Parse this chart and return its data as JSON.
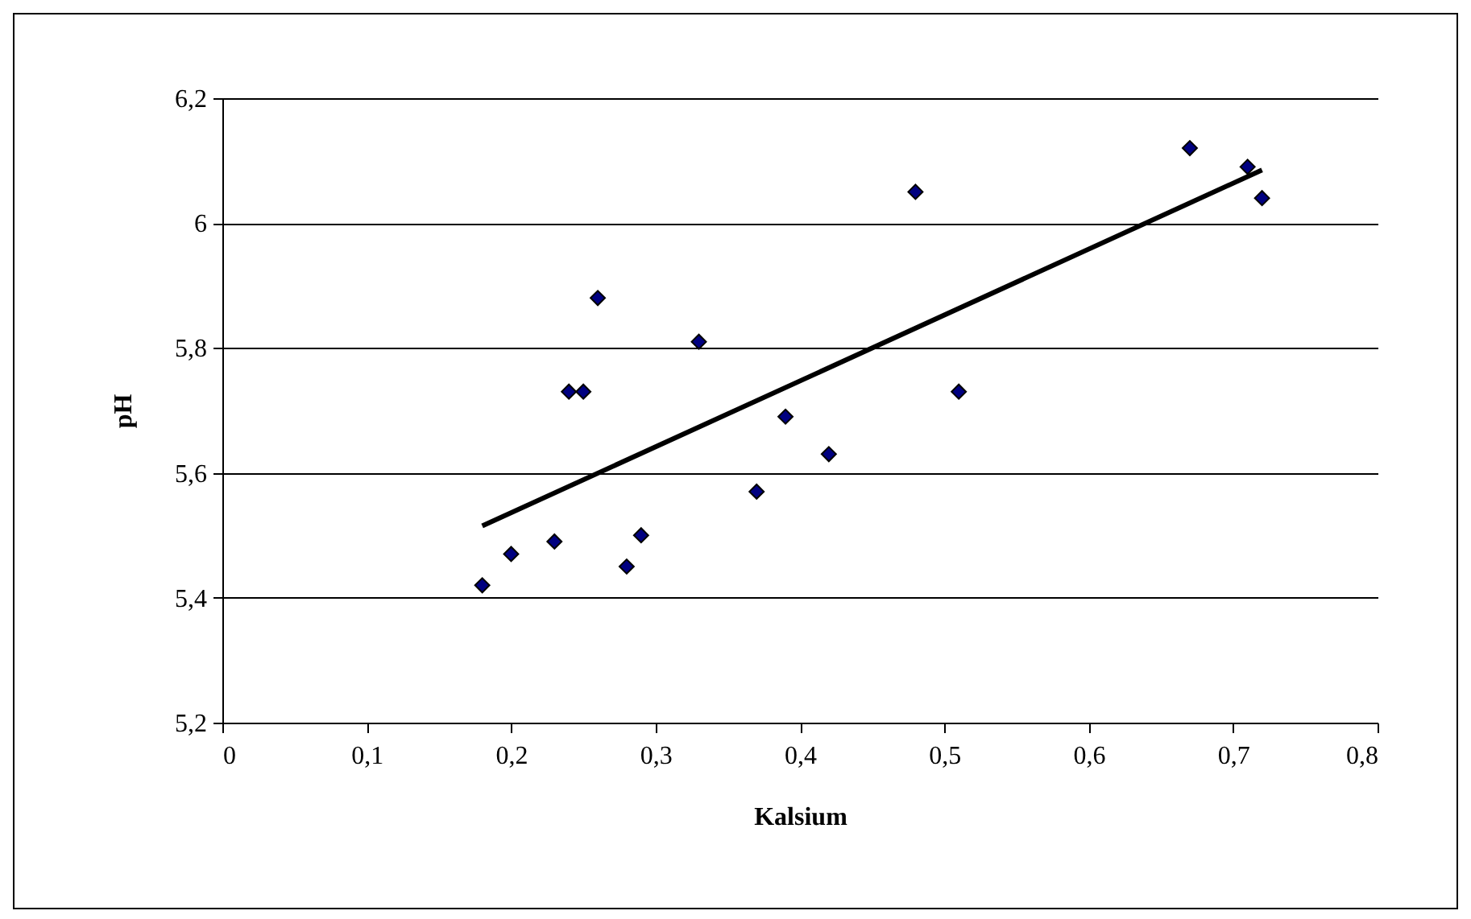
{
  "chart_data": {
    "type": "scatter",
    "xlabel": "Kalsium",
    "ylabel": "pH",
    "xlim": [
      0,
      0.8
    ],
    "ylim": [
      5.2,
      6.2
    ],
    "xticks": [
      0,
      {
        "value": 0.1,
        "label": "0,1"
      },
      {
        "value": 0.2,
        "label": "0,2"
      },
      {
        "value": 0.3,
        "label": "0,3"
      },
      {
        "value": 0.4,
        "label": "0,4"
      },
      {
        "value": 0.5,
        "label": "0,5"
      },
      {
        "value": 0.6,
        "label": "0,6"
      },
      {
        "value": 0.7,
        "label": "0,7"
      },
      {
        "value": 0.8,
        "label": "0,8"
      }
    ],
    "yticks": [
      {
        "value": 5.2,
        "label": "5,2"
      },
      {
        "value": 5.4,
        "label": "5,4"
      },
      {
        "value": 5.6,
        "label": "5,6"
      },
      {
        "value": 5.8,
        "label": "5,8"
      },
      6,
      {
        "value": 6.2,
        "label": "6,2"
      }
    ],
    "grid": "y",
    "marker": "diamond",
    "series": [
      {
        "color": "#000080",
        "x": [
          0.18,
          0.2,
          0.23,
          0.24,
          0.25,
          0.26,
          0.28,
          0.29,
          0.33,
          0.37,
          0.39,
          0.42,
          0.48,
          0.51,
          0.67,
          0.71,
          0.72
        ],
        "values": [
          5.42,
          5.47,
          5.49,
          5.73,
          5.73,
          5.88,
          5.45,
          5.5,
          5.81,
          5.57,
          5.69,
          5.63,
          6.05,
          5.73,
          6.12,
          6.09,
          6.04
        ]
      },
      {
        "type": "line",
        "color": "#000000",
        "line_style": "solid",
        "marker": "none",
        "x": [
          0.18,
          0.72
        ],
        "values": [
          5.515,
          6.085
        ]
      }
    ]
  }
}
